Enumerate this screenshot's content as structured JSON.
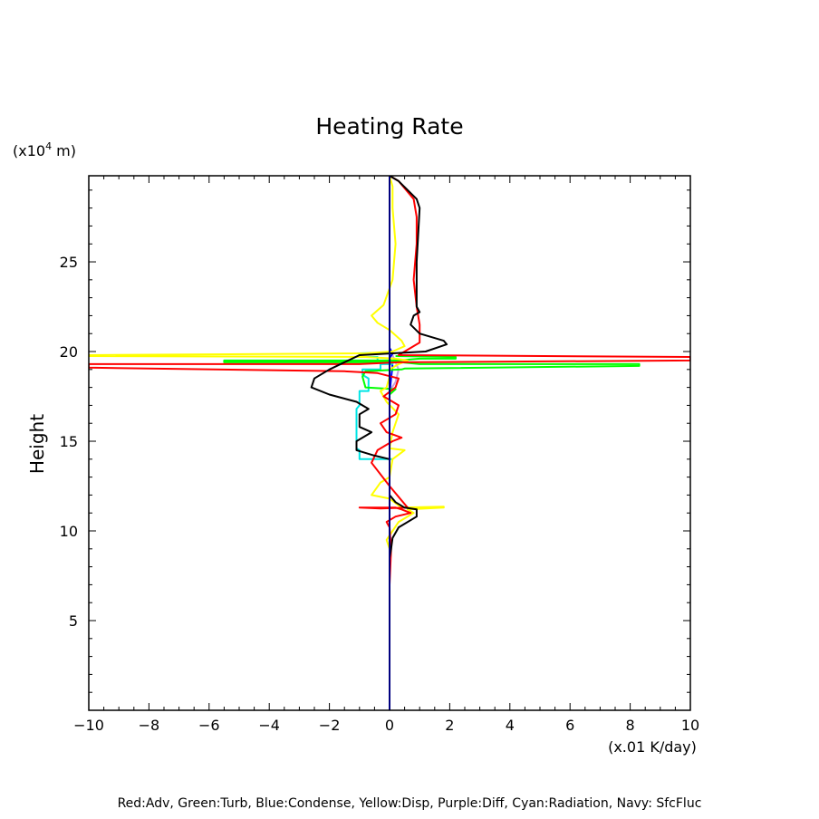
{
  "chart_data": {
    "type": "line",
    "title": "Heating Rate",
    "ylabel": "Height",
    "yunit": "(x10",
    "yunit_exp": "4",
    "yunit_tail": " m)",
    "xunit": "(x.01 K/day)",
    "footer": "Red:Adv, Green:Turb, Blue:Condense, Yellow:Disp, Purple:Diff, Cyan:Radiation, Navy: SfcFluc",
    "xlim": [
      -10,
      10
    ],
    "ylim": [
      0,
      29.8
    ],
    "xticks": [
      {
        "v": -10,
        "t": "−10"
      },
      {
        "v": -8,
        "t": "−8"
      },
      {
        "v": -6,
        "t": "−6"
      },
      {
        "v": -4,
        "t": "−4"
      },
      {
        "v": -2,
        "t": "−2"
      },
      {
        "v": 0,
        "t": "0"
      },
      {
        "v": 2,
        "t": "2"
      },
      {
        "v": 4,
        "t": "4"
      },
      {
        "v": 6,
        "t": "6"
      },
      {
        "v": 8,
        "t": "8"
      },
      {
        "v": 10,
        "t": "10"
      }
    ],
    "yticks": [
      {
        "v": 5,
        "t": "5"
      },
      {
        "v": 10,
        "t": "10"
      },
      {
        "v": 15,
        "t": "15"
      },
      {
        "v": 20,
        "t": "20"
      },
      {
        "v": 25,
        "t": "25"
      }
    ],
    "series": [
      {
        "name": "SfcFluc",
        "color": "#000080",
        "x": [
          0,
          0,
          0,
          0
        ],
        "y": [
          0,
          10,
          20,
          29.8
        ]
      },
      {
        "name": "Diff",
        "color": "#c8a0e0",
        "x": [
          0,
          0,
          0.2,
          0.3,
          0.1,
          0
        ],
        "y": [
          17.0,
          17.8,
          18.3,
          19.0,
          19.8,
          20.2
        ]
      },
      {
        "name": "Condense",
        "color": "#0000ff",
        "x": [
          0,
          0.05,
          0.1,
          0,
          0.1,
          0
        ],
        "y": [
          17.6,
          18.5,
          19.2,
          19.6,
          19.9,
          20.2
        ]
      },
      {
        "name": "Radiation",
        "color": "#00e5e5",
        "x": [
          0.1,
          -1.0,
          -1.0,
          -1.1,
          -1.1,
          -1.0,
          -1.0,
          -0.7,
          -0.7,
          -0.9,
          -0.9,
          -0.3,
          -0.3,
          0.1,
          0.1,
          -0.4,
          -0.4,
          -1.0,
          -1.0,
          -1.05,
          -1.0,
          0.0,
          0.0
        ],
        "y": [
          14.0,
          14.0,
          14.5,
          14.6,
          16.8,
          17.0,
          17.8,
          17.8,
          18.5,
          18.7,
          19.0,
          19.0,
          19.3,
          19.3,
          19.4,
          19.4,
          19.7,
          19.7,
          19.9,
          19.9,
          19.9,
          19.95,
          20.0
        ]
      },
      {
        "name": "Turb",
        "color": "#00ff00",
        "x": [
          0,
          0.2,
          -0.8,
          -0.9,
          -0.8,
          0.4,
          0.5,
          8.3,
          8.3,
          1.0,
          0.4,
          -5.5,
          -5.5,
          0.3,
          1.0,
          2.2,
          2.2,
          0.2
        ],
        "y": [
          17.6,
          17.9,
          18.0,
          18.6,
          18.9,
          19.0,
          19.05,
          19.2,
          19.3,
          19.3,
          19.4,
          19.4,
          19.5,
          19.5,
          19.6,
          19.6,
          19.7,
          19.75
        ]
      },
      {
        "name": "Disp",
        "color": "#ffff00",
        "x": [
          0.0,
          -0.1,
          0.3,
          0.8,
          0.6,
          1.8,
          1.8,
          0.4,
          0.0,
          -0.6,
          -0.3,
          0.0,
          0.1,
          0.5,
          0.0,
          0.1,
          0.3,
          -0.1,
          -0.3,
          -0.1,
          0.0,
          0.0,
          0.3,
          0.6,
          0.2,
          -0.8,
          -10,
          -10,
          -0.8,
          0.1,
          0.5,
          0.4,
          0.0,
          -0.4,
          -0.6,
          -0.2,
          0.1,
          0.2,
          0.1,
          0.1,
          0.0
        ],
        "y": [
          9.0,
          9.5,
          10.5,
          11.0,
          11.2,
          11.3,
          11.35,
          11.3,
          11.8,
          12.0,
          12.7,
          13.0,
          14.0,
          14.5,
          14.6,
          15.5,
          16.5,
          17.2,
          17.8,
          18.0,
          18.6,
          19.0,
          19.3,
          19.5,
          19.6,
          19.7,
          19.75,
          19.8,
          19.9,
          20.0,
          20.3,
          20.6,
          21.2,
          21.6,
          22.0,
          22.6,
          24.0,
          26.0,
          28.0,
          29.2,
          29.8
        ]
      },
      {
        "name": "Adv",
        "color": "#ff0000",
        "x": [
          0.0,
          0.0,
          0.05,
          0.0,
          -0.1,
          0.2,
          0.7,
          0.4,
          0.2,
          -1.0,
          -0.3,
          0.6,
          0.0,
          -0.6,
          -0.4,
          0.1,
          0.4,
          -0.1,
          -0.3,
          0.2,
          0.3,
          -0.2,
          0.2,
          0.3,
          -0.4,
          -1.5,
          -10,
          -10,
          -1.0,
          0.3,
          10,
          10,
          0.3,
          0.5,
          1.0,
          1.0,
          0.9,
          0.8,
          0.9,
          0.9,
          0.8,
          0.3,
          0.0
        ],
        "y": [
          5.5,
          7.0,
          9.0,
          10.2,
          10.5,
          10.8,
          11.0,
          11.2,
          11.3,
          11.3,
          11.25,
          11.3,
          12.5,
          13.8,
          14.5,
          15.0,
          15.2,
          15.5,
          16.0,
          16.5,
          17.0,
          17.5,
          18.0,
          18.5,
          18.8,
          18.9,
          19.1,
          19.3,
          19.3,
          19.4,
          19.5,
          19.7,
          19.8,
          20.0,
          20.5,
          21.5,
          22.5,
          24.0,
          26.0,
          27.5,
          28.5,
          29.5,
          29.8
        ]
      },
      {
        "name": "Net",
        "color": "#000000",
        "x": [
          0.0,
          0.05,
          0.1,
          0.3,
          0.9,
          0.9,
          0.5,
          0.2,
          0.0,
          0.0,
          -0.5,
          -1.1,
          -1.1,
          -0.8,
          -0.6,
          -1.0,
          -1.0,
          -0.7,
          -1.1,
          -2.0,
          -2.6,
          -2.5,
          -2.0,
          -1.0,
          1.2,
          1.9,
          1.8,
          1.0,
          0.7,
          0.8,
          1.0,
          0.9,
          0.9,
          1.0,
          0.9,
          0.3,
          0.0
        ],
        "y": [
          8.5,
          9.0,
          9.6,
          10.2,
          10.8,
          11.2,
          11.3,
          11.6,
          12.0,
          14.0,
          14.2,
          14.5,
          15.0,
          15.3,
          15.5,
          15.8,
          16.5,
          16.8,
          17.2,
          17.6,
          18.0,
          18.5,
          19.0,
          19.8,
          20.0,
          20.4,
          20.6,
          21.0,
          21.5,
          22.0,
          22.2,
          22.5,
          25.0,
          28.0,
          28.5,
          29.5,
          29.8
        ]
      }
    ]
  }
}
